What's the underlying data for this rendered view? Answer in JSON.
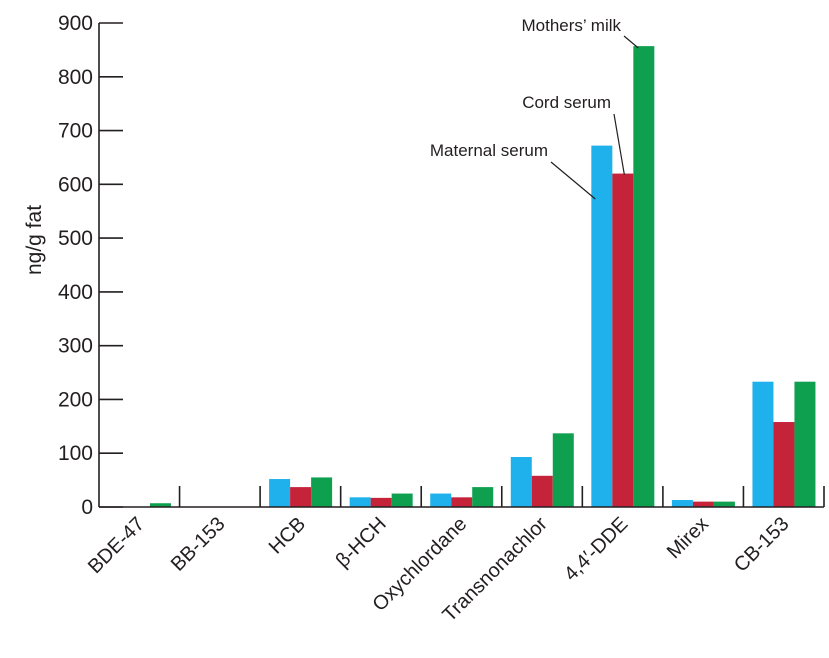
{
  "chart_data": {
    "type": "bar",
    "ylabel": "ng/g fat",
    "ylim": [
      0,
      900
    ],
    "yticks": [
      "0",
      "100",
      "200",
      "300",
      "400",
      "500",
      "600",
      "700",
      "800",
      "900"
    ],
    "categories": [
      "BDE-47",
      "BB-153",
      "HCB",
      "β-HCH",
      "Oxychlordane",
      "Transnonachlor",
      "4,4′-DDE",
      "Mirex",
      "CB-153"
    ],
    "series": [
      {
        "name": "Maternal serum",
        "color": "#1fb1ec",
        "values": [
          0,
          0,
          52,
          18,
          25,
          93,
          672,
          13,
          233
        ]
      },
      {
        "name": "Cord serum",
        "color": "#c4233a",
        "values": [
          0,
          0,
          37,
          17,
          18,
          58,
          620,
          10,
          158
        ]
      },
      {
        "name": "Mothers’ milk",
        "color": "#0ea04f",
        "values": [
          7,
          0,
          55,
          25,
          37,
          137,
          857,
          10,
          233
        ]
      }
    ],
    "legend": "callout labels on 4,4′-DDE bars",
    "grid": false
  }
}
